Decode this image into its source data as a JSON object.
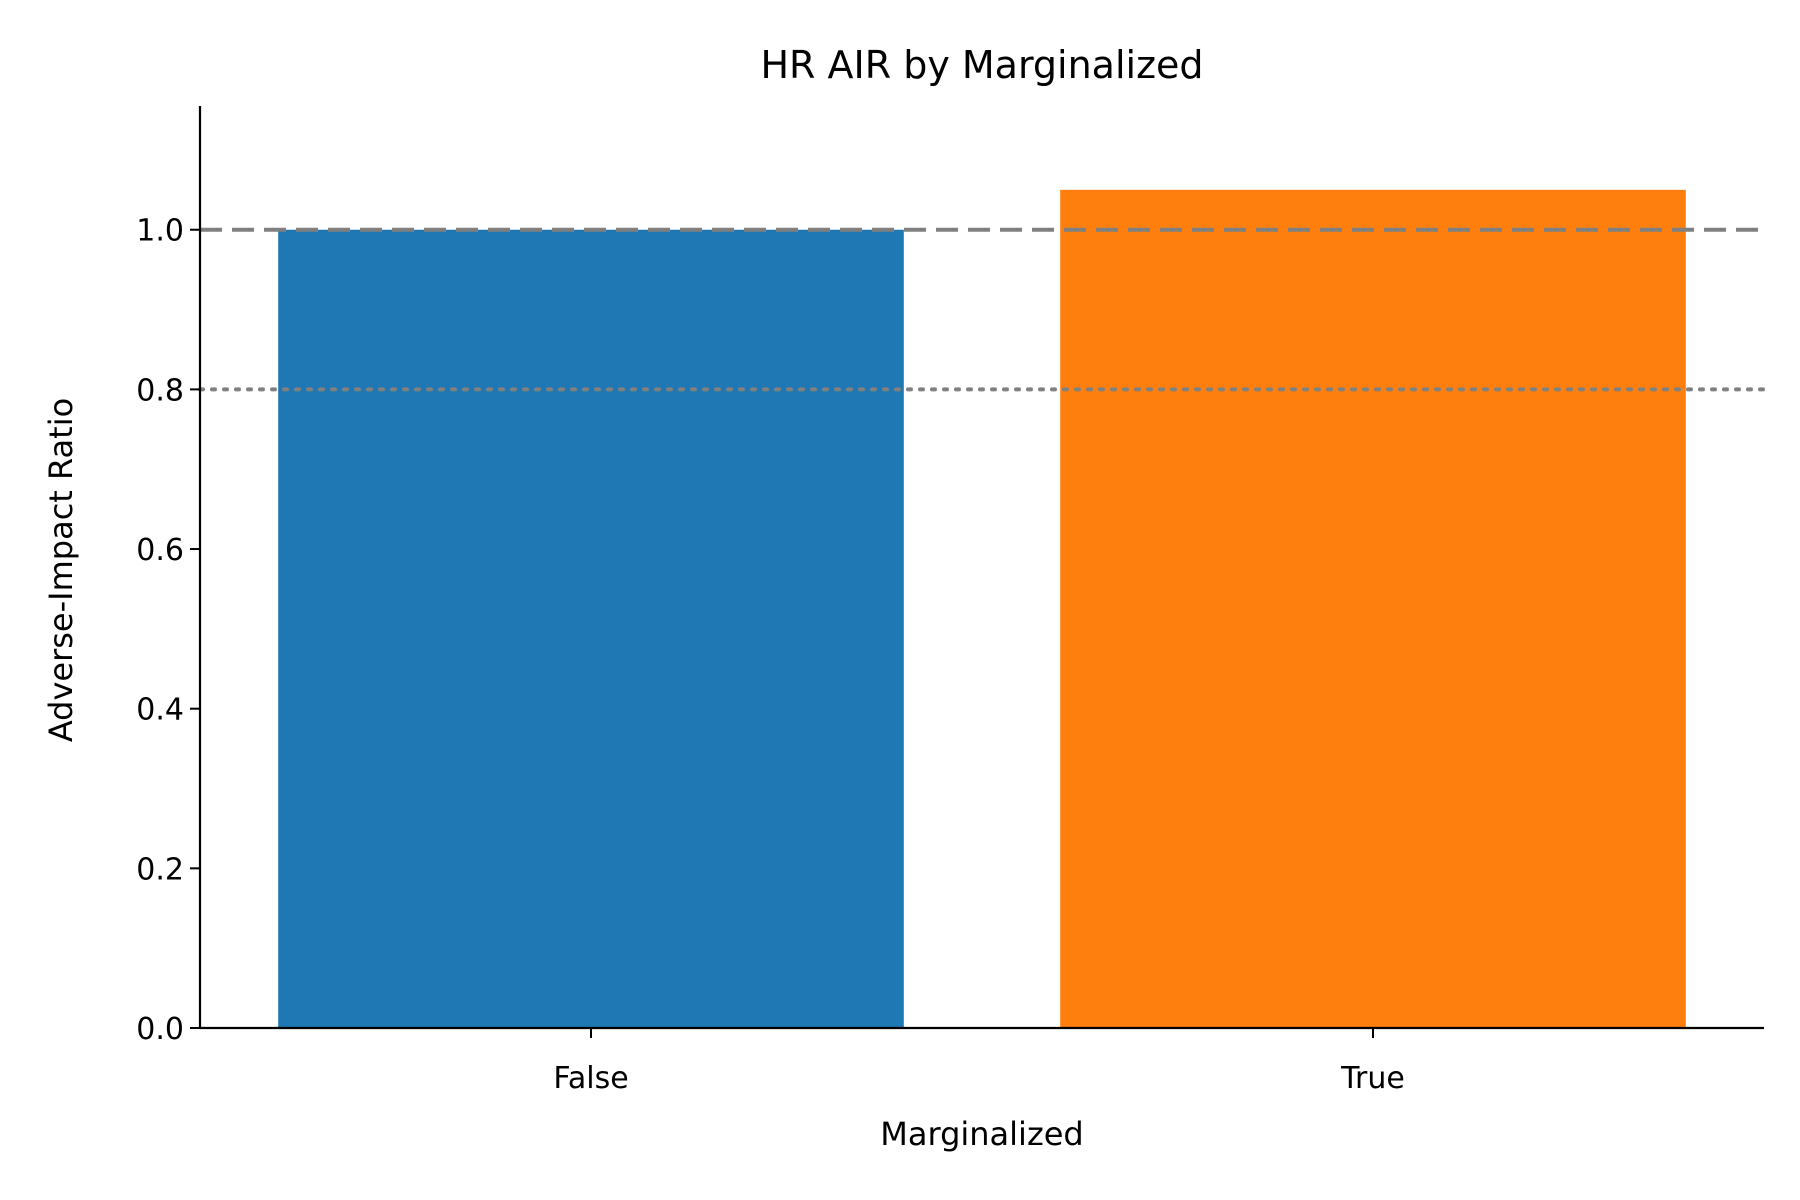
{
  "chart_data": {
    "type": "bar",
    "title": "HR AIR by Marginalized",
    "xlabel": "Marginalized",
    "ylabel": "Adverse-Impact Ratio",
    "categories": [
      "False",
      "True"
    ],
    "values": [
      1.0,
      1.05
    ],
    "colors": [
      "#1f77b4",
      "#ff7f0e"
    ],
    "ylim": [
      0,
      1.155
    ],
    "yticks": [
      0.0,
      0.2,
      0.4,
      0.6,
      0.8,
      1.0
    ],
    "ytick_labels": [
      "0.0",
      "0.2",
      "0.4",
      "0.6",
      "0.8",
      "1.0"
    ],
    "reference_lines": [
      {
        "y": 1.0,
        "style": "dashed",
        "color": "#808080"
      },
      {
        "y": 0.8,
        "style": "dotted",
        "color": "#808080"
      }
    ],
    "grid": false,
    "legend": "none"
  }
}
